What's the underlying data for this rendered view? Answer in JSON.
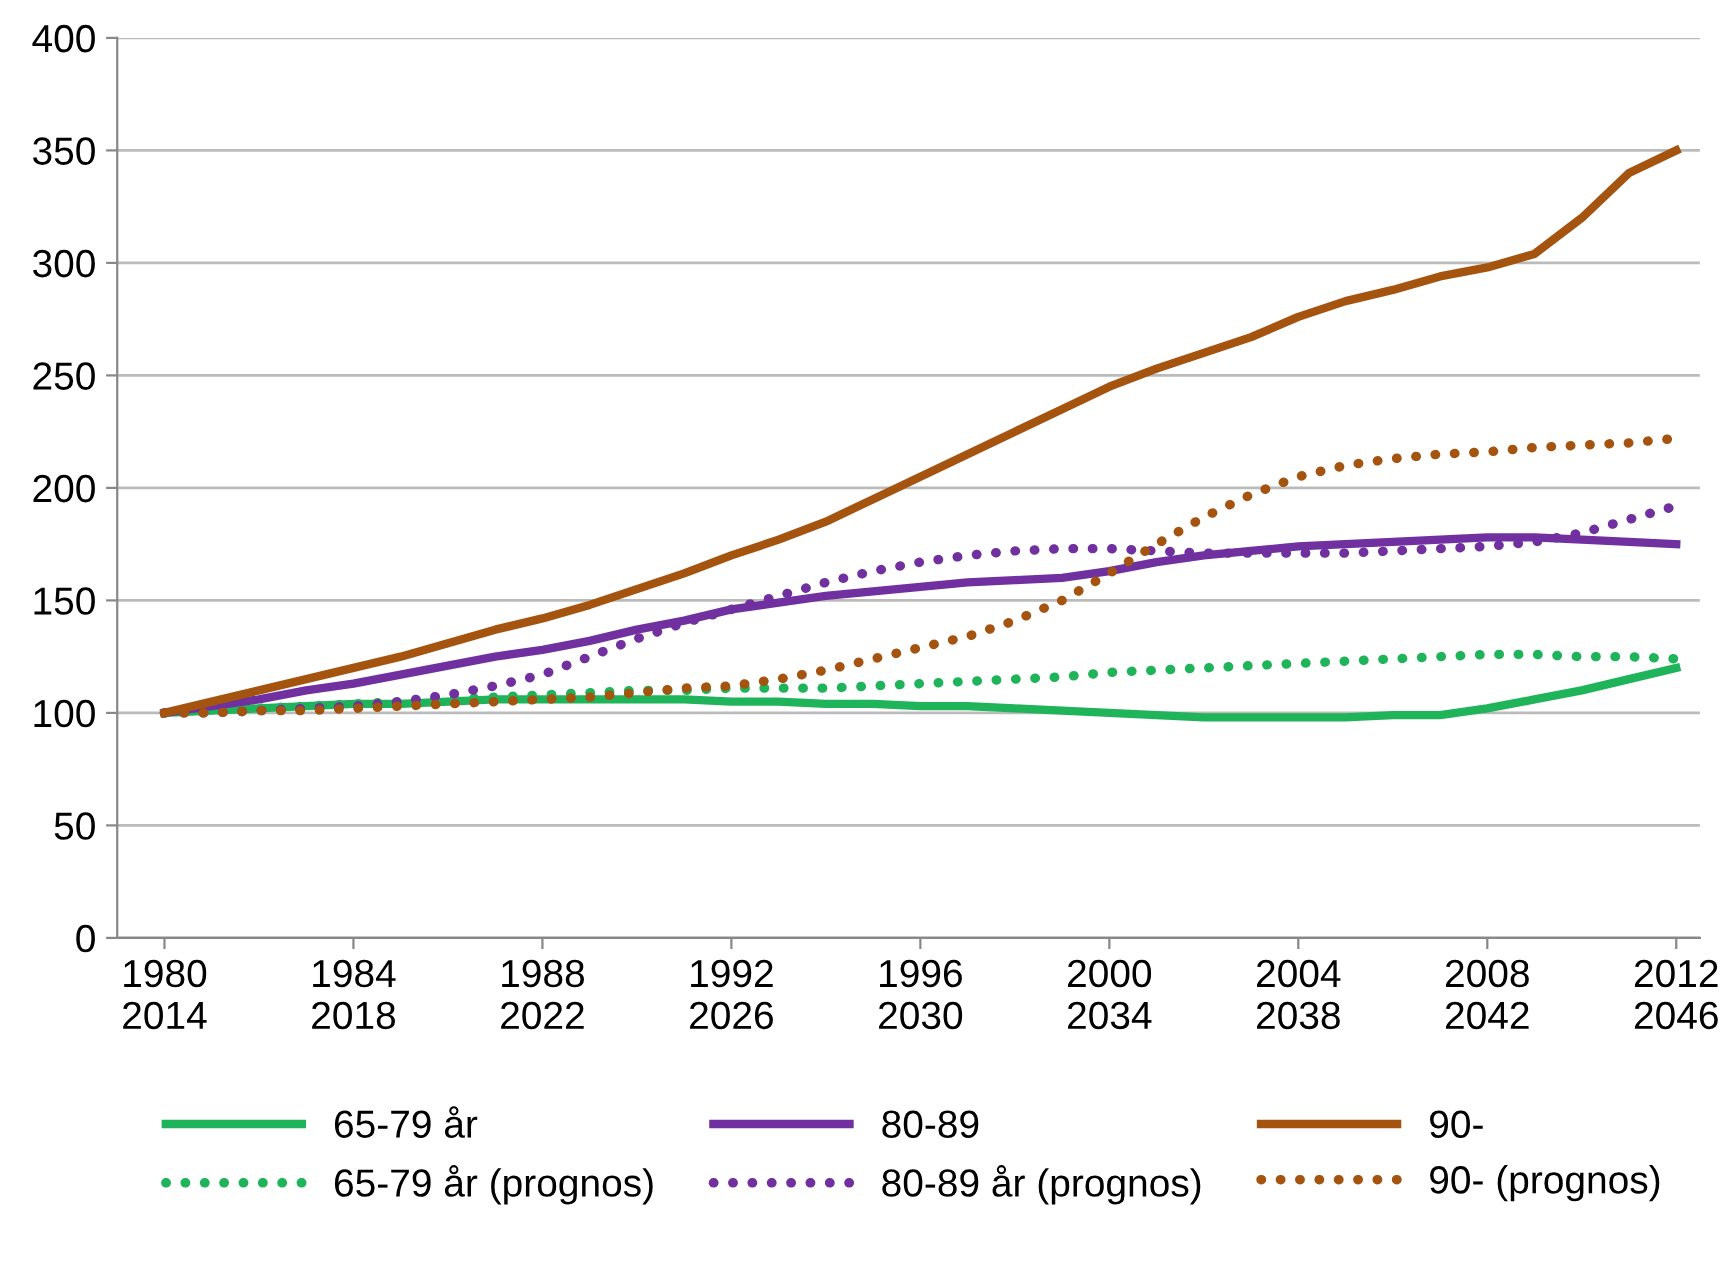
{
  "chart_data": {
    "type": "line",
    "categories": [
      "1980\n2014",
      null,
      null,
      null,
      "1984\n2018",
      null,
      null,
      null,
      "1988\n2022",
      null,
      null,
      null,
      "1992\n2026",
      null,
      null,
      null,
      "1996\n2030",
      null,
      null,
      null,
      "2000\n2034",
      null,
      null,
      null,
      "2004\n2038",
      null,
      null,
      null,
      "2008\n2042",
      null,
      null,
      null,
      "2012\n2046"
    ],
    "series": [
      {
        "name": "65-79 år",
        "color": "#1fb45a",
        "line_style": "solid",
        "values": [
          100,
          101,
          102,
          103,
          104,
          104,
          105,
          106,
          106,
          106,
          106,
          106,
          105,
          105,
          104,
          104,
          103,
          103,
          102,
          101,
          100,
          99,
          98,
          98,
          98,
          98,
          99,
          99,
          102,
          106,
          110,
          115,
          120
        ]
      },
      {
        "name": "65-79 år (prognos)",
        "color": "#1fb45a",
        "line_style": "dotted",
        "values": [
          100,
          101,
          102,
          103,
          104,
          105,
          106,
          107,
          108,
          109,
          110,
          110,
          111,
          111,
          111,
          112,
          113,
          114,
          115,
          116,
          118,
          119,
          120,
          121,
          122,
          123,
          124,
          125,
          126,
          126,
          125,
          125,
          124
        ]
      },
      {
        "name": "80-89",
        "color": "#7030a0",
        "line_style": "solid",
        "values": [
          100,
          103,
          106,
          110,
          113,
          117,
          121,
          125,
          128,
          132,
          137,
          141,
          146,
          149,
          152,
          154,
          156,
          158,
          159,
          160,
          163,
          167,
          170,
          172,
          174,
          175,
          176,
          177,
          178,
          178,
          177,
          176,
          175
        ]
      },
      {
        "name": "80-89 år (prognos)",
        "color": "#7030a0",
        "line_style": "dotted",
        "values": [
          100,
          100,
          101,
          102,
          103,
          105,
          108,
          112,
          117,
          125,
          133,
          140,
          146,
          152,
          158,
          163,
          167,
          170,
          172,
          173,
          173,
          172,
          171,
          171,
          171,
          171,
          172,
          173,
          174,
          176,
          180,
          186,
          192
        ]
      },
      {
        "name": "90-",
        "color": "#a4540f",
        "line_style": "solid",
        "values": [
          100,
          105,
          110,
          115,
          120,
          125,
          131,
          137,
          142,
          148,
          155,
          162,
          170,
          177,
          185,
          195,
          205,
          215,
          225,
          235,
          245,
          253,
          260,
          267,
          276,
          283,
          288,
          294,
          298,
          304,
          320,
          340,
          350
        ]
      },
      {
        "name": "90- (prognos)",
        "color": "#a4540f",
        "line_style": "dotted",
        "values": [
          100,
          100,
          101,
          101,
          102,
          103,
          104,
          105,
          106,
          107,
          109,
          111,
          112,
          115,
          119,
          124,
          129,
          134,
          141,
          150,
          162,
          175,
          187,
          197,
          205,
          210,
          213,
          215,
          216,
          218,
          219,
          220,
          222
        ]
      }
    ],
    "ylim": [
      0,
      400
    ],
    "yticks": [
      0,
      50,
      100,
      150,
      200,
      250,
      300,
      350,
      400
    ],
    "grid": "y",
    "legend": "bottom",
    "marker": "none"
  }
}
